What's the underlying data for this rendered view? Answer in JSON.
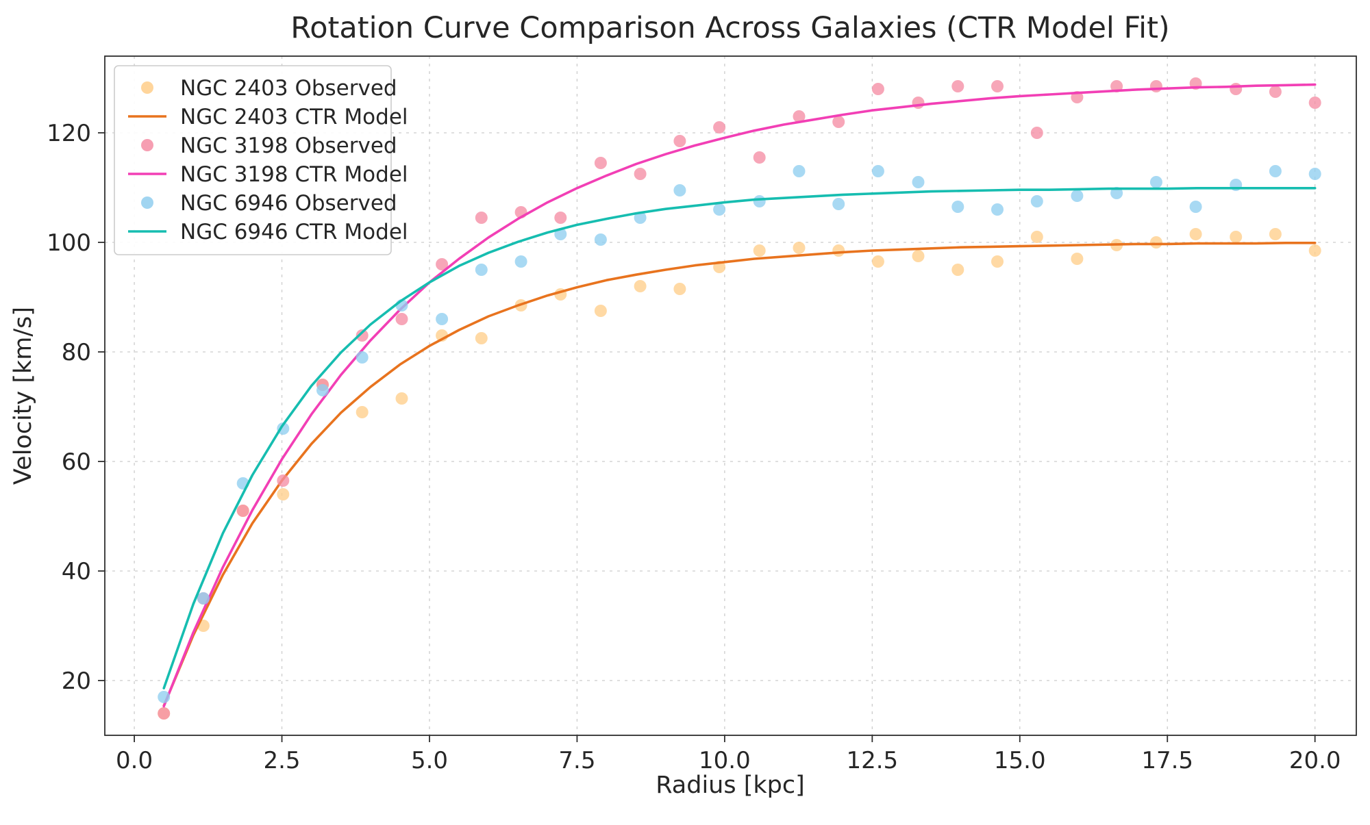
{
  "chart_data": {
    "type": "line",
    "title": "Rotation Curve Comparison Across Galaxies (CTR Model Fit)",
    "xlabel": "Radius [kpc]",
    "ylabel": "Velocity [km/s]",
    "xlim": [
      -0.5,
      20.7
    ],
    "ylim": [
      10,
      134
    ],
    "xticks": [
      0,
      2.5,
      5,
      7.5,
      10,
      12.5,
      15,
      17.5,
      20
    ],
    "xtick_labels": [
      "0.0",
      "2.5",
      "5.0",
      "7.5",
      "10.0",
      "12.5",
      "15.0",
      "17.5",
      "20.0"
    ],
    "yticks": [
      20,
      40,
      60,
      80,
      100,
      120
    ],
    "ytick_labels": [
      "20",
      "40",
      "60",
      "80",
      "100",
      "120"
    ],
    "grid": true,
    "legend_position": "upper left",
    "style": {
      "background": "#ffffff",
      "grid_color": "#cccccc",
      "spine_color": "#2e2e2e",
      "text_color": "#262626"
    },
    "series": [
      {
        "name": "NGC 2403 Observed",
        "type": "scatter",
        "color": "#FFCE8A",
        "x": [
          0.5,
          1.17,
          1.84,
          2.52,
          3.19,
          3.86,
          4.53,
          5.21,
          5.88,
          6.55,
          7.22,
          7.9,
          8.57,
          9.24,
          9.91,
          10.59,
          11.26,
          11.93,
          12.6,
          13.28,
          13.95,
          14.62,
          15.29,
          15.97,
          16.64,
          17.31,
          17.98,
          18.66,
          19.33,
          20.0
        ],
        "y": [
          14.0,
          30.0,
          51.0,
          54.0,
          74.0,
          69.0,
          71.5,
          83.0,
          82.5,
          88.5,
          90.5,
          87.5,
          92.0,
          91.5,
          95.5,
          98.5,
          99.0,
          98.5,
          96.5,
          97.5,
          95.0,
          96.5,
          101.0,
          97.0,
          99.5,
          100.0,
          101.5,
          101.0,
          101.5,
          98.5
        ]
      },
      {
        "name": "NGC 2403 CTR Model",
        "type": "line",
        "color": "#E8731E",
        "x": [
          0.5,
          1.0,
          1.5,
          2.0,
          2.5,
          3.0,
          3.5,
          4.0,
          4.5,
          5.0,
          5.5,
          6.0,
          6.5,
          7.0,
          7.5,
          8.0,
          8.5,
          9.0,
          9.5,
          10.0,
          10.5,
          11.0,
          11.5,
          12.0,
          12.5,
          13.0,
          13.5,
          14.0,
          14.5,
          15.0,
          15.5,
          16.0,
          16.5,
          17.0,
          17.5,
          18.0,
          18.5,
          19.0,
          19.5,
          20.0
        ],
        "y": [
          15.4,
          28.3,
          39.3,
          48.7,
          56.5,
          63.2,
          68.9,
          73.6,
          77.7,
          81.1,
          84.0,
          86.5,
          88.5,
          90.3,
          91.8,
          93.1,
          94.1,
          95.0,
          95.8,
          96.4,
          97.0,
          97.4,
          97.8,
          98.2,
          98.5,
          98.7,
          98.9,
          99.1,
          99.2,
          99.3,
          99.4,
          99.5,
          99.6,
          99.7,
          99.7,
          99.8,
          99.8,
          99.8,
          99.9,
          99.9
        ]
      },
      {
        "name": "NGC 3198 Observed",
        "type": "scatter",
        "color": "#F58DA4",
        "x": [
          0.5,
          1.17,
          1.84,
          2.52,
          3.19,
          3.86,
          4.53,
          5.21,
          5.88,
          6.55,
          7.22,
          7.9,
          8.57,
          9.24,
          9.91,
          10.59,
          11.26,
          11.93,
          12.6,
          13.28,
          13.95,
          14.62,
          15.29,
          15.97,
          16.64,
          17.31,
          17.98,
          18.66,
          19.33,
          20.0
        ],
        "y": [
          14.0,
          35.0,
          51.0,
          56.5,
          74.0,
          83.0,
          86.0,
          96.0,
          104.5,
          105.5,
          104.5,
          114.5,
          112.5,
          118.5,
          121.0,
          115.5,
          123.0,
          122.0,
          128.0,
          125.5,
          128.5,
          128.5,
          120.0,
          126.5,
          128.5,
          128.5,
          129.0,
          128.0,
          127.5,
          125.5
        ]
      },
      {
        "name": "NGC 3198 CTR Model",
        "type": "line",
        "color": "#F23FB5",
        "x": [
          0.5,
          1.0,
          1.5,
          2.0,
          2.5,
          3.0,
          3.5,
          4.0,
          4.5,
          5.0,
          5.5,
          6.0,
          6.5,
          7.0,
          7.5,
          8.0,
          8.5,
          9.0,
          9.5,
          10.0,
          10.5,
          11.0,
          11.5,
          12.0,
          12.5,
          13.0,
          13.5,
          14.0,
          14.5,
          15.0,
          15.5,
          16.0,
          16.5,
          17.0,
          17.5,
          18.0,
          18.5,
          19.0,
          19.5,
          20.0
        ],
        "y": [
          15.3,
          28.8,
          40.7,
          51.1,
          60.4,
          68.6,
          75.8,
          82.1,
          87.7,
          92.7,
          97.0,
          100.9,
          104.3,
          107.3,
          109.9,
          112.2,
          114.3,
          116.1,
          117.7,
          119.1,
          120.4,
          121.5,
          122.4,
          123.3,
          124.1,
          124.7,
          125.3,
          125.8,
          126.3,
          126.7,
          127.0,
          127.3,
          127.6,
          127.9,
          128.1,
          128.3,
          128.4,
          128.6,
          128.7,
          128.8
        ]
      },
      {
        "name": "NGC 6946 Observed",
        "type": "scatter",
        "color": "#90CEEF",
        "x": [
          0.5,
          1.17,
          1.84,
          2.52,
          3.19,
          3.86,
          4.53,
          5.21,
          5.88,
          6.55,
          7.22,
          7.9,
          8.57,
          9.24,
          9.91,
          10.59,
          11.26,
          11.93,
          12.6,
          13.28,
          13.95,
          14.62,
          15.29,
          15.97,
          16.64,
          17.31,
          17.98,
          18.66,
          19.33,
          20.0
        ],
        "y": [
          17.0,
          35.0,
          56.0,
          66.0,
          73.0,
          79.0,
          88.5,
          86.0,
          95.0,
          96.5,
          101.5,
          100.5,
          104.5,
          109.5,
          106.0,
          107.5,
          113.0,
          107.0,
          113.0,
          111.0,
          106.5,
          106.0,
          107.5,
          108.5,
          109.0,
          111.0,
          106.5,
          110.5,
          113.0,
          112.5
        ]
      },
      {
        "name": "NGC 6946 CTR Model",
        "type": "line",
        "color": "#16BDB0",
        "x": [
          0.5,
          1.0,
          1.5,
          2.0,
          2.5,
          3.0,
          3.5,
          4.0,
          4.5,
          5.0,
          5.5,
          6.0,
          6.5,
          7.0,
          7.5,
          8.0,
          8.5,
          9.0,
          9.5,
          10.0,
          10.5,
          11.0,
          11.5,
          12.0,
          12.5,
          13.0,
          13.5,
          14.0,
          14.5,
          15.0,
          15.5,
          16.0,
          16.5,
          17.0,
          17.5,
          18.0,
          18.5,
          19.0,
          19.5,
          20.0
        ],
        "y": [
          18.6,
          34.0,
          46.9,
          57.5,
          66.4,
          73.8,
          79.9,
          85.0,
          89.2,
          92.7,
          95.7,
          98.1,
          100.1,
          101.8,
          103.2,
          104.3,
          105.3,
          106.1,
          106.7,
          107.3,
          107.8,
          108.1,
          108.4,
          108.7,
          108.9,
          109.1,
          109.3,
          109.4,
          109.5,
          109.6,
          109.6,
          109.7,
          109.8,
          109.8,
          109.8,
          109.9,
          109.9,
          109.9,
          109.9,
          109.9
        ]
      }
    ]
  }
}
